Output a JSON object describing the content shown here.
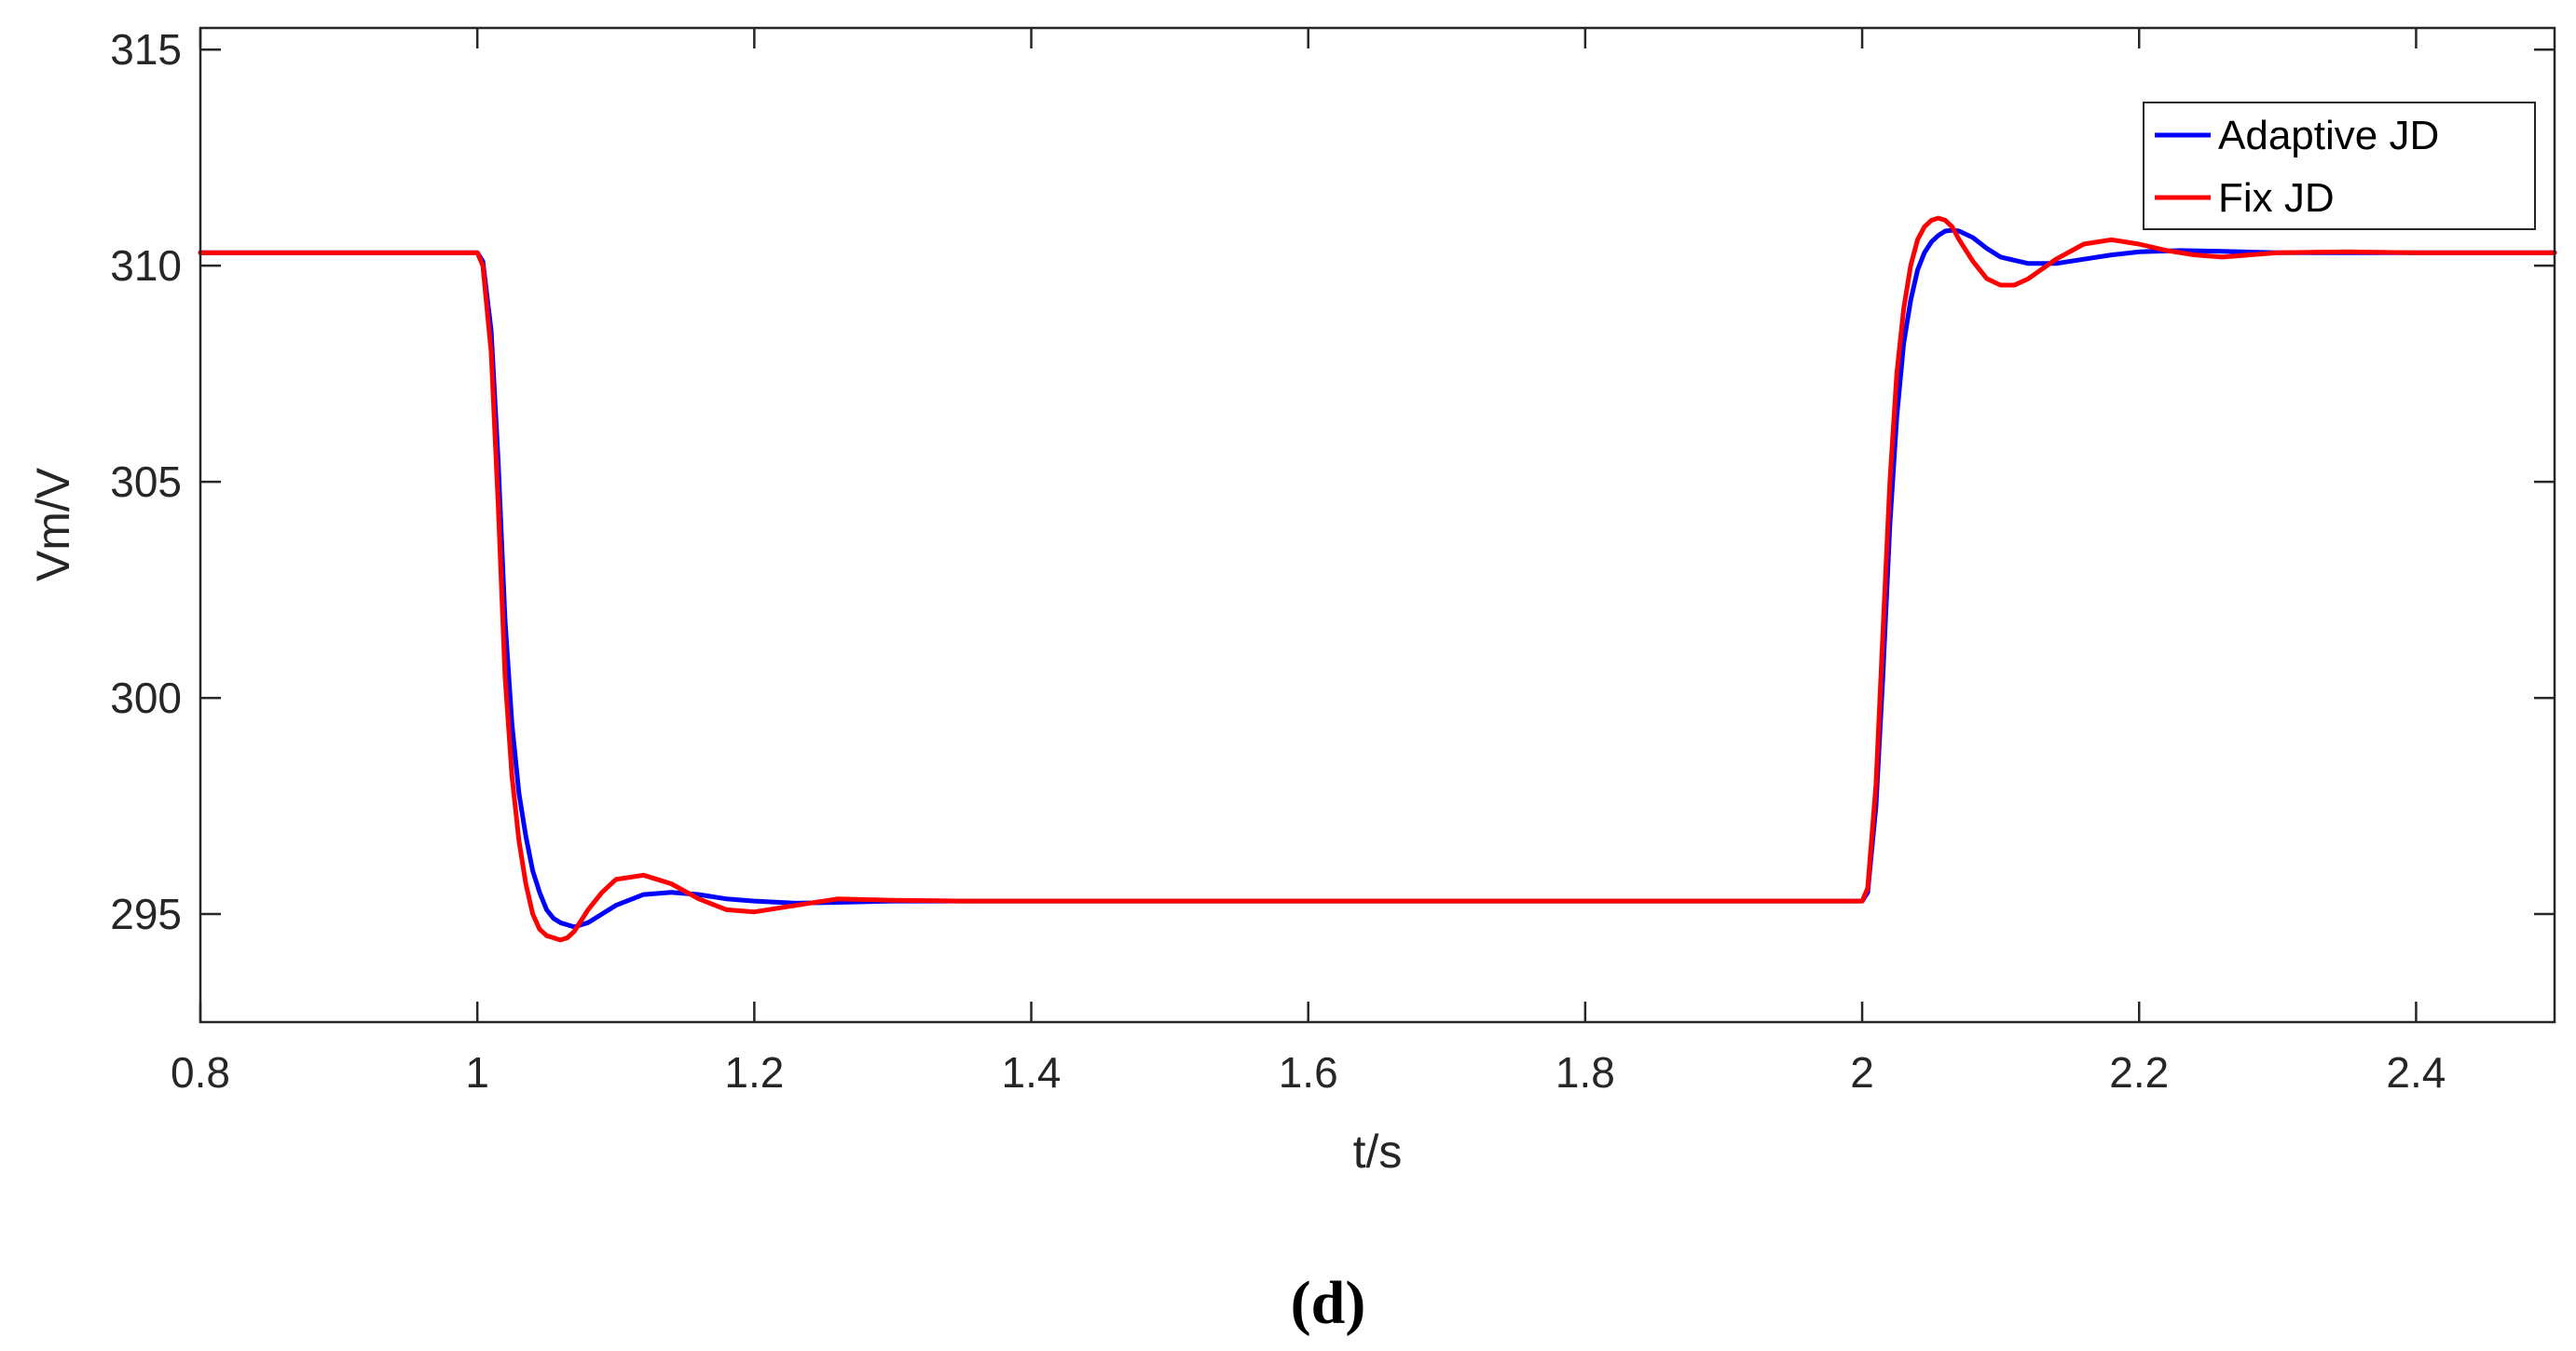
{
  "chart_data": {
    "type": "line",
    "xlabel": "t/s",
    "ylabel": "Vm/V",
    "xlim": [
      0.8,
      2.5
    ],
    "ylim": [
      292.5,
      315.5
    ],
    "xticks": [
      0.8,
      1,
      1.2,
      1.4,
      1.6,
      1.8,
      2,
      2.2,
      2.4
    ],
    "xtick_labels": [
      "0.8",
      "1",
      "1.2",
      "1.4",
      "1.6",
      "1.8",
      "2",
      "2.2",
      "2.4"
    ],
    "yticks": [
      295,
      300,
      305,
      310,
      315
    ],
    "ytick_labels": [
      "295",
      "300",
      "305",
      "310",
      "315"
    ],
    "grid": false,
    "legend_position": "top-right",
    "caption": "(d)",
    "series": [
      {
        "name": "Adaptive JD",
        "color": "#0000ff",
        "x": [
          0.8,
          1.0,
          1.004,
          1.01,
          1.015,
          1.02,
          1.025,
          1.03,
          1.035,
          1.04,
          1.045,
          1.05,
          1.055,
          1.06,
          1.065,
          1.07,
          1.08,
          1.09,
          1.1,
          1.12,
          1.14,
          1.16,
          1.18,
          1.2,
          1.23,
          1.26,
          1.3,
          1.35,
          1.4,
          2.0,
          2.004,
          2.01,
          2.015,
          2.02,
          2.025,
          2.03,
          2.035,
          2.04,
          2.045,
          2.05,
          2.055,
          2.06,
          2.065,
          2.07,
          2.08,
          2.09,
          2.1,
          2.12,
          2.14,
          2.16,
          2.18,
          2.2,
          2.23,
          2.26,
          2.3,
          2.35,
          2.4,
          2.5
        ],
        "y": [
          310.3,
          310.3,
          310.1,
          308.5,
          305.5,
          301.8,
          299.4,
          297.8,
          296.8,
          296.0,
          295.5,
          295.1,
          294.9,
          294.8,
          294.75,
          294.7,
          294.8,
          295.0,
          295.2,
          295.45,
          295.5,
          295.45,
          295.35,
          295.3,
          295.25,
          295.27,
          295.3,
          295.3,
          295.3,
          295.3,
          295.5,
          297.5,
          300.5,
          304.0,
          306.5,
          308.2,
          309.2,
          309.9,
          310.3,
          310.55,
          310.7,
          310.8,
          310.82,
          310.8,
          310.65,
          310.4,
          310.2,
          310.05,
          310.05,
          310.15,
          310.25,
          310.32,
          310.35,
          310.33,
          310.3,
          310.3,
          310.3,
          310.3
        ]
      },
      {
        "name": "Fix JD",
        "color": "#ff0000",
        "x": [
          0.8,
          1.0,
          1.004,
          1.01,
          1.015,
          1.02,
          1.025,
          1.03,
          1.035,
          1.04,
          1.045,
          1.05,
          1.055,
          1.06,
          1.065,
          1.07,
          1.08,
          1.09,
          1.1,
          1.12,
          1.14,
          1.16,
          1.18,
          1.2,
          1.23,
          1.26,
          1.3,
          1.35,
          1.4,
          2.0,
          2.004,
          2.01,
          2.015,
          2.02,
          2.025,
          2.03,
          2.035,
          2.04,
          2.045,
          2.05,
          2.055,
          2.06,
          2.065,
          2.07,
          2.08,
          2.09,
          2.1,
          2.11,
          2.12,
          2.14,
          2.16,
          2.18,
          2.2,
          2.22,
          2.24,
          2.26,
          2.3,
          2.35,
          2.4,
          2.5
        ],
        "y": [
          310.3,
          310.3,
          310.0,
          308.0,
          304.5,
          300.5,
          298.2,
          296.7,
          295.7,
          295.0,
          294.65,
          294.5,
          294.45,
          294.4,
          294.45,
          294.6,
          295.1,
          295.5,
          295.8,
          295.9,
          295.7,
          295.35,
          295.1,
          295.05,
          295.2,
          295.35,
          295.32,
          295.3,
          295.3,
          295.3,
          295.6,
          298.0,
          301.5,
          305.0,
          307.5,
          309.0,
          310.0,
          310.6,
          310.9,
          311.05,
          311.1,
          311.05,
          310.9,
          310.6,
          310.1,
          309.7,
          309.55,
          309.55,
          309.7,
          310.15,
          310.5,
          310.6,
          310.5,
          310.35,
          310.25,
          310.2,
          310.3,
          310.32,
          310.3,
          310.3
        ]
      }
    ]
  }
}
